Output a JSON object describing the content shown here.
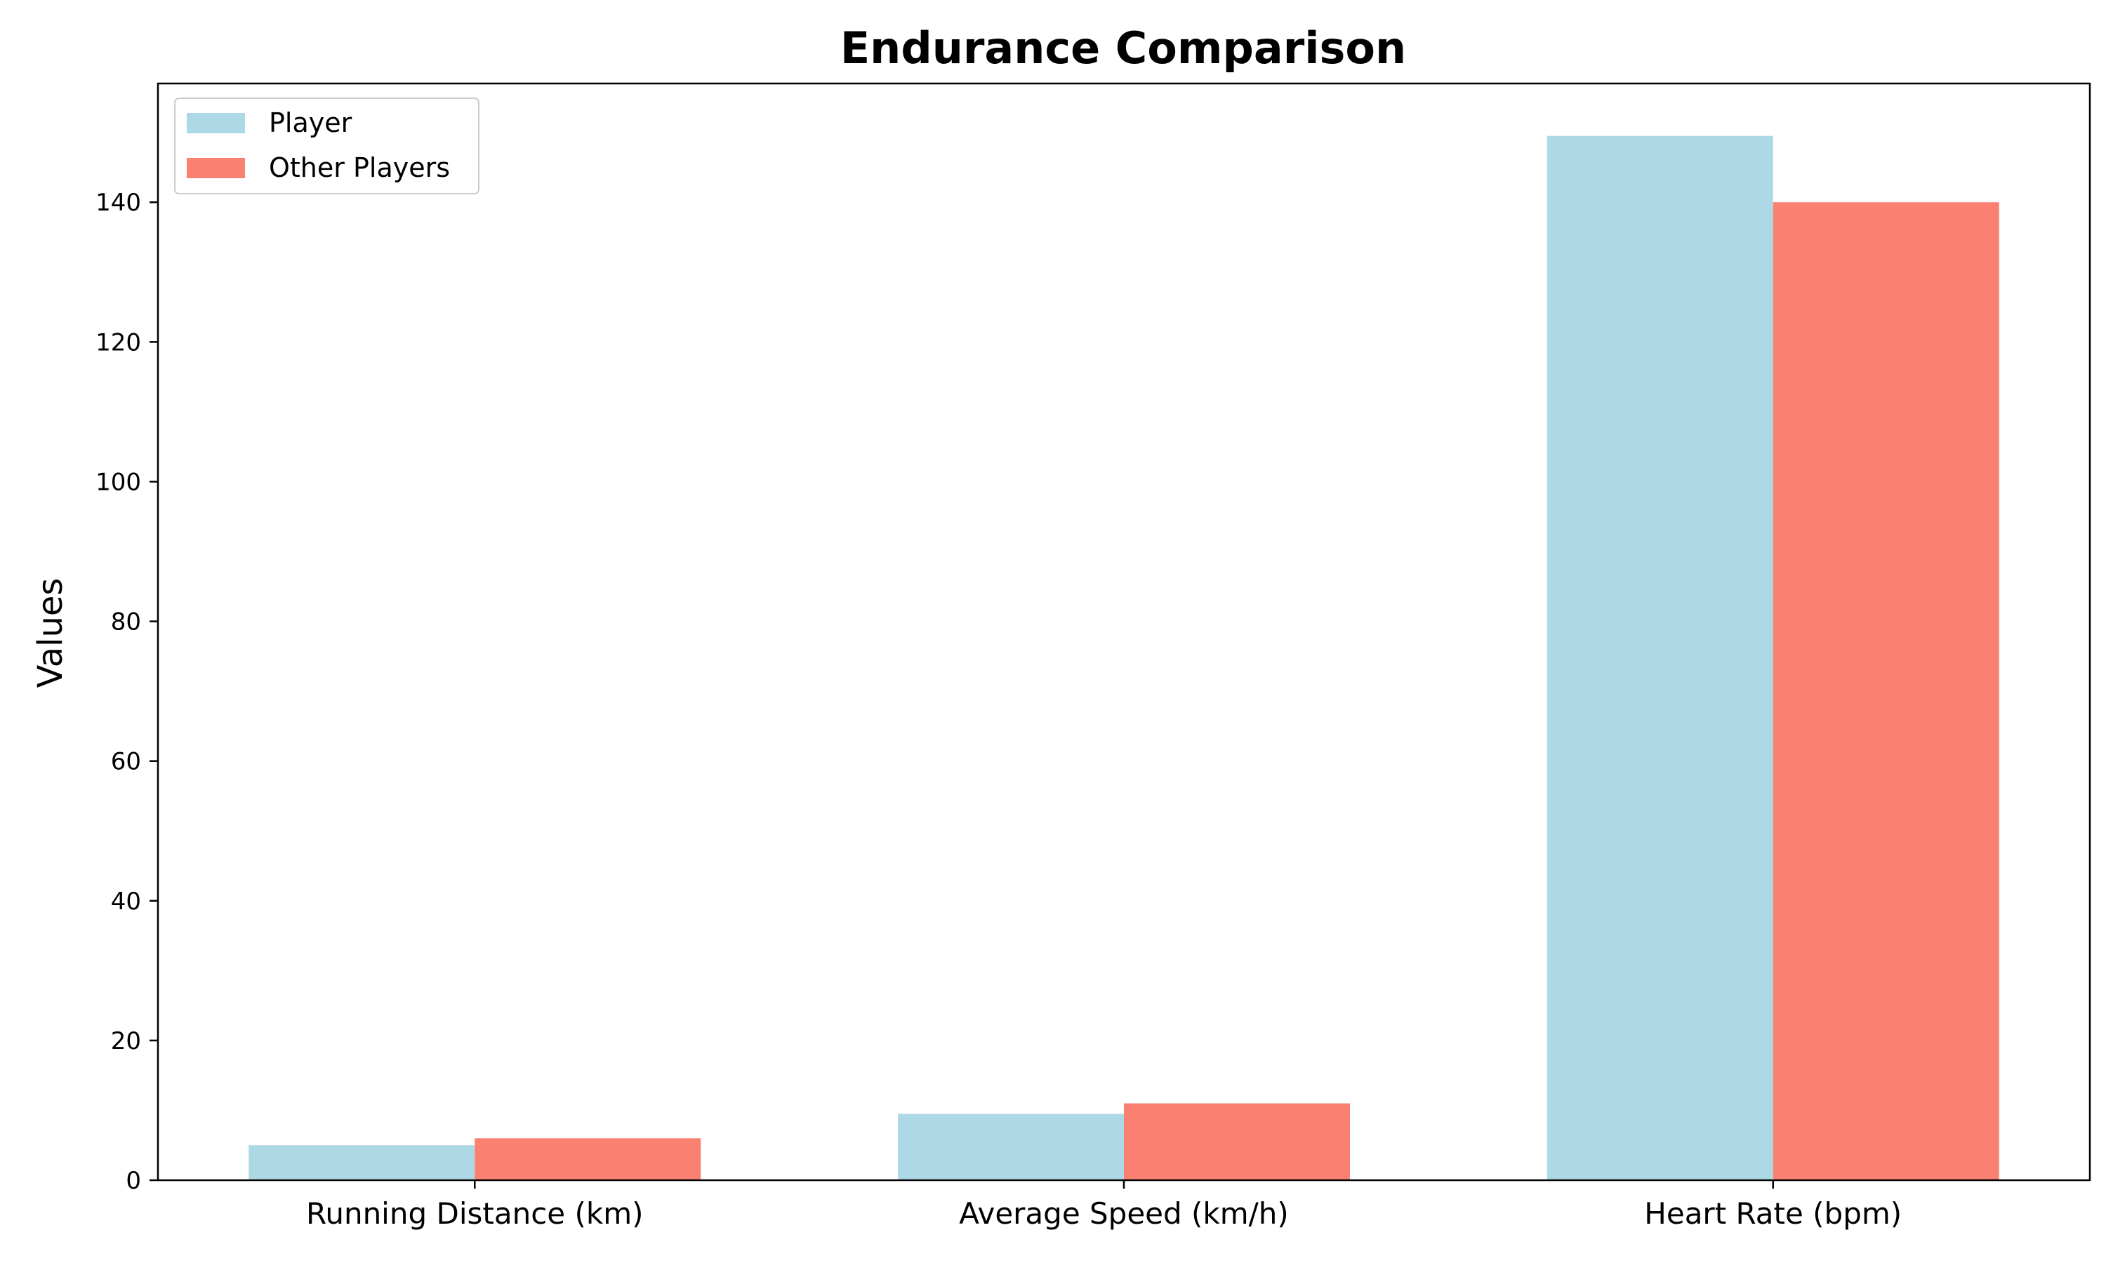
{
  "chart_data": {
    "type": "bar",
    "title": "Endurance Comparison",
    "xlabel": "",
    "ylabel": "Values",
    "categories": [
      "Running Distance (km)",
      "Average Speed (km/h)",
      "Heart Rate (bpm)"
    ],
    "series": [
      {
        "name": "Player",
        "values": [
          5,
          9.5,
          149.5
        ],
        "color": "#ADD8E6"
      },
      {
        "name": "Other Players",
        "values": [
          6,
          11,
          140
        ],
        "color": "#FA8072"
      }
    ],
    "ylim": [
      0,
      157
    ],
    "yticks": [
      0,
      20,
      40,
      60,
      80,
      100,
      120,
      140
    ],
    "grid": false,
    "legend_position": "top-left"
  }
}
